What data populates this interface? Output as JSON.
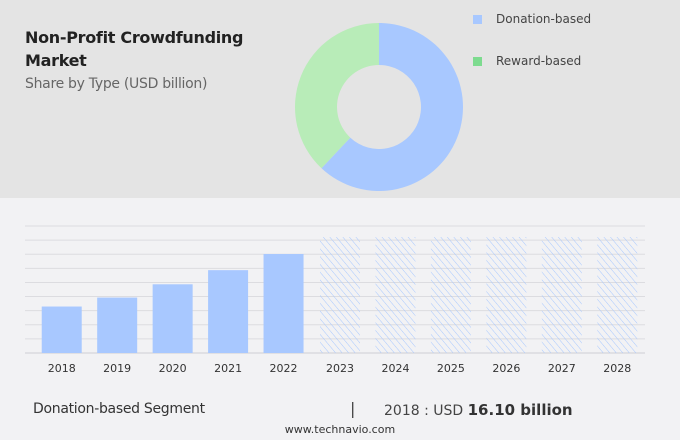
{
  "title": "Non-Profit Crowdfunding Market",
  "subtitle": "Share by Type (USD billion)",
  "colors": {
    "donation": "#a8c8ff",
    "reward": "#b8ecb8",
    "reward_legend": "#7ddb8f",
    "hatch": "#a8c8ff"
  },
  "chart_data": [
    {
      "type": "pie",
      "donut": true,
      "legend_position": "top-right",
      "slices": [
        {
          "name": "Donation-based",
          "value": 62
        },
        {
          "name": "Reward-based",
          "value": 38
        }
      ]
    },
    {
      "type": "bar",
      "grid": true,
      "categories": [
        "2018",
        "2019",
        "2020",
        "2021",
        "2022",
        "2023",
        "2024",
        "2025",
        "2026",
        "2027",
        "2028"
      ],
      "values": [
        16.1,
        19.2,
        23.8,
        28.7,
        34.3,
        null,
        null,
        null,
        null,
        null,
        null
      ],
      "forecast_categories": [
        "2023",
        "2024",
        "2025",
        "2026",
        "2027",
        "2028"
      ],
      "ylim": [
        0,
        44
      ]
    }
  ],
  "footer": {
    "segment": "Donation-based Segment",
    "separator": "|",
    "value_prefix": "2018 : USD",
    "value_bold": "16.10 billion",
    "website": "www.technavio.com"
  }
}
